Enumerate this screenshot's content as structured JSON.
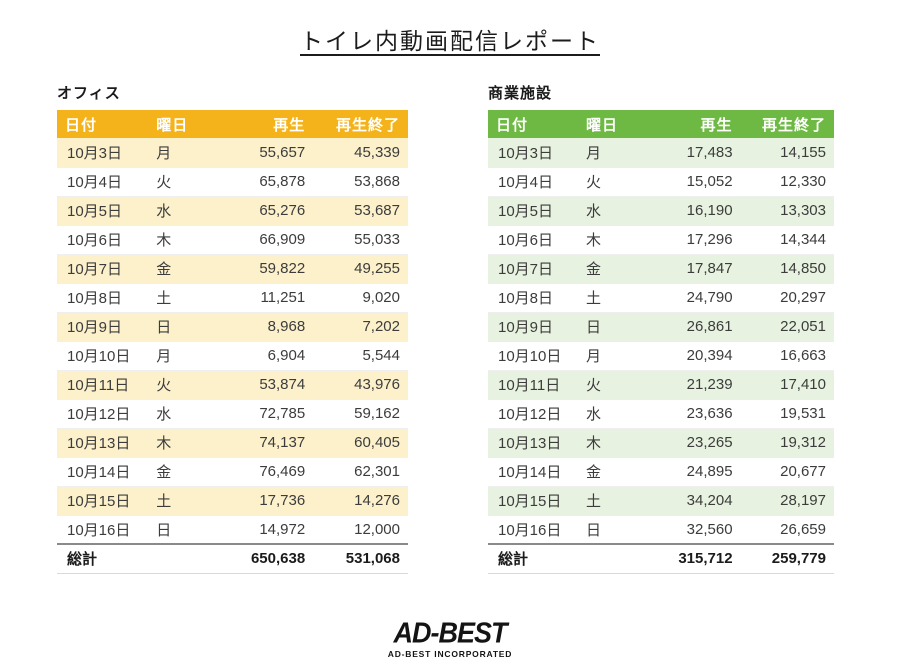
{
  "page": {
    "title": "トイレ内動画配信レポート"
  },
  "tables": [
    {
      "label": "オフィス",
      "colors": {
        "header_bg": "#F5B31B",
        "band_bg": "#FCF1CB"
      },
      "columns": [
        "日付",
        "曜日",
        "再生",
        "再生終了"
      ],
      "rows": [
        [
          "10月3日",
          "月",
          "55,657",
          "45,339"
        ],
        [
          "10月4日",
          "火",
          "65,878",
          "53,868"
        ],
        [
          "10月5日",
          "水",
          "65,276",
          "53,687"
        ],
        [
          "10月6日",
          "木",
          "66,909",
          "55,033"
        ],
        [
          "10月7日",
          "金",
          "59,822",
          "49,255"
        ],
        [
          "10月8日",
          "土",
          "11,251",
          "9,020"
        ],
        [
          "10月9日",
          "日",
          "8,968",
          "7,202"
        ],
        [
          "10月10日",
          "月",
          "6,904",
          "5,544"
        ],
        [
          "10月11日",
          "火",
          "53,874",
          "43,976"
        ],
        [
          "10月12日",
          "水",
          "72,785",
          "59,162"
        ],
        [
          "10月13日",
          "木",
          "74,137",
          "60,405"
        ],
        [
          "10月14日",
          "金",
          "76,469",
          "62,301"
        ],
        [
          "10月15日",
          "土",
          "17,736",
          "14,276"
        ],
        [
          "10月16日",
          "日",
          "14,972",
          "12,000"
        ]
      ],
      "total": {
        "label": "総計",
        "plays": "650,638",
        "completions": "531,068"
      }
    },
    {
      "label": "商業施設",
      "colors": {
        "header_bg": "#6EB944",
        "band_bg": "#E7F3E0"
      },
      "columns": [
        "日付",
        "曜日",
        "再生",
        "再生終了"
      ],
      "rows": [
        [
          "10月3日",
          "月",
          "17,483",
          "14,155"
        ],
        [
          "10月4日",
          "火",
          "15,052",
          "12,330"
        ],
        [
          "10月5日",
          "水",
          "16,190",
          "13,303"
        ],
        [
          "10月6日",
          "木",
          "17,296",
          "14,344"
        ],
        [
          "10月7日",
          "金",
          "17,847",
          "14,850"
        ],
        [
          "10月8日",
          "土",
          "24,790",
          "20,297"
        ],
        [
          "10月9日",
          "日",
          "26,861",
          "22,051"
        ],
        [
          "10月10日",
          "月",
          "20,394",
          "16,663"
        ],
        [
          "10月11日",
          "火",
          "21,239",
          "17,410"
        ],
        [
          "10月12日",
          "水",
          "23,636",
          "19,531"
        ],
        [
          "10月13日",
          "木",
          "23,265",
          "19,312"
        ],
        [
          "10月14日",
          "金",
          "24,895",
          "20,677"
        ],
        [
          "10月15日",
          "土",
          "34,204",
          "28,197"
        ],
        [
          "10月16日",
          "日",
          "32,560",
          "26,659"
        ]
      ],
      "total": {
        "label": "総計",
        "plays": "315,712",
        "completions": "259,779"
      }
    }
  ],
  "footer": {
    "logo_text": "AD-BEST",
    "logo_subtext": "AD-BEST INCORPORATED"
  }
}
